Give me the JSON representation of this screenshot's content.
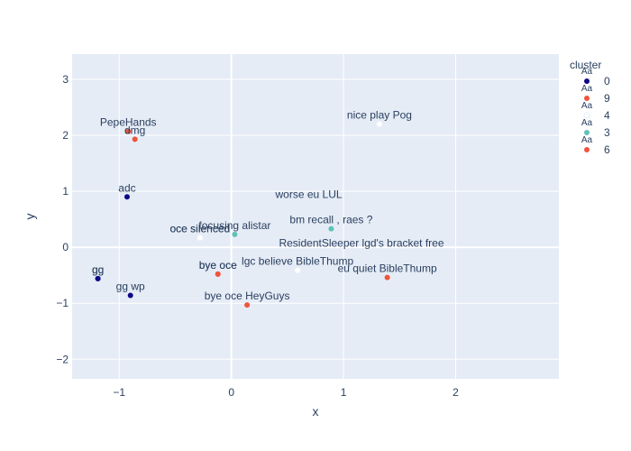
{
  "chart_data": {
    "type": "scatter",
    "xlabel": "x",
    "ylabel": "y",
    "xlim": [
      -1.42,
      2.92
    ],
    "ylim": [
      -2.35,
      3.45
    ],
    "x_ticks": [
      -1,
      0,
      1,
      2
    ],
    "y_ticks": [
      -2,
      -1,
      0,
      1,
      2,
      3
    ],
    "x_tick_labels": [
      "−1",
      "0",
      "1",
      "2"
    ],
    "y_tick_labels": [
      "−2",
      "−1",
      "0",
      "1",
      "2",
      "3"
    ],
    "grid": true,
    "legend_title": "cluster",
    "legend_position": "right",
    "legend_symbol_text": "Aa",
    "series": [
      {
        "name": "0",
        "color": "#0d0887",
        "points": [
          {
            "x": -0.93,
            "y": 0.9,
            "label": "adc"
          },
          {
            "x": -1.19,
            "y": -0.56,
            "label": "gg"
          },
          {
            "x": -1.19,
            "y": -0.56,
            "label": "gg"
          },
          {
            "x": -0.9,
            "y": -0.86,
            "label": "gg wp"
          }
        ]
      },
      {
        "name": "9",
        "color": "#ef553b",
        "points": [
          {
            "x": -0.92,
            "y": 2.07,
            "label": "PepeHands"
          },
          {
            "x": -0.86,
            "y": 1.93,
            "label": "dmg"
          },
          {
            "x": -0.12,
            "y": -0.48,
            "label": "bye oce"
          },
          {
            "x": -0.12,
            "y": -0.48,
            "label": "bye oce"
          },
          {
            "x": 0.14,
            "y": -1.03,
            "label": "bye oce HeyGuys"
          },
          {
            "x": 1.39,
            "y": -0.54,
            "label": "eu quiet BibleThump"
          }
        ]
      },
      {
        "name": "4",
        "color": "#ffffff",
        "points": [
          {
            "x": 1.32,
            "y": 2.2,
            "label": "nice play Pog"
          },
          {
            "x": -0.28,
            "y": 0.17,
            "label": "oce silenced"
          },
          {
            "x": -0.28,
            "y": 0.17,
            "label": "oce silenced"
          },
          {
            "x": 0.59,
            "y": -0.41,
            "label": "lgc believe BibleThump"
          }
        ]
      },
      {
        "name": "3",
        "color": "#5fc2b8",
        "points": [
          {
            "x": 0.89,
            "y": 0.33,
            "label": "bm recall , raes ?"
          },
          {
            "x": 0.03,
            "y": 0.23,
            "label": "focusing alistar"
          }
        ]
      },
      {
        "name": "6",
        "color": "#ef553b",
        "points": []
      }
    ],
    "extra_labels": [
      {
        "x": 0.69,
        "y": 0.78,
        "label": "worse eu LUL"
      },
      {
        "x": 1.16,
        "y": -0.09,
        "label": "ResidentSleeper lgd's bracket free"
      }
    ]
  }
}
